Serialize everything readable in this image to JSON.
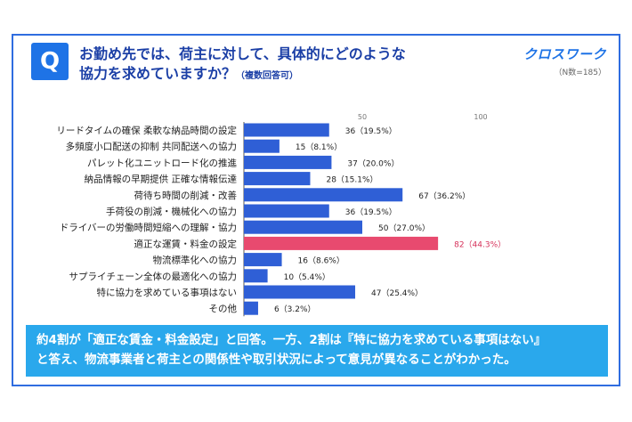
{
  "question": {
    "badge": "Q",
    "line1": "お勤め先では、荷主に対して、具体的にどのような",
    "line2": "協力を求めていますか？",
    "note": "（複数回答可）"
  },
  "brand": "クロスワーク",
  "sample_size": "（N数=185）",
  "colors": {
    "bar": "#2f5fd6",
    "highlight": "#e84a6f",
    "highlight_label": "#d6315a",
    "frame": "#2f6de0"
  },
  "chart_data": {
    "type": "bar",
    "orientation": "horizontal",
    "title": "",
    "xlabel": "",
    "ylabel": "",
    "xlim": [
      0,
      100
    ],
    "ticks": [
      "50",
      "100"
    ],
    "tick_values": [
      50,
      100
    ],
    "grid": false,
    "highlight_index": 7,
    "categories": [
      "リードタイムの確保 柔軟な納品時間の設定",
      "多頻度小口配送の抑制 共同配送への協力",
      "パレット化ユニットロード化の推進",
      "納品情報の早期提供 正確な情報伝達",
      "荷待ち時間の削減・改善",
      "手荷役の削減・機械化への協力",
      "ドライバーの労働時間短縮への理解・協力",
      "適正な運賃・料金の設定",
      "物流標準化への協力",
      "サプライチェーン全体の最適化への協力",
      "特に協力を求めている事項はない",
      "その他"
    ],
    "values": [
      36,
      15,
      37,
      28,
      67,
      36,
      50,
      82,
      16,
      10,
      47,
      6
    ],
    "labels": [
      "36（19.5%）",
      "15（8.1%）",
      "37（20.0%）",
      "28（15.1%）",
      "67（36.2%）",
      "36（19.5%）",
      "50（27.0%）",
      "82（44.3%）",
      "16（8.6%）",
      "10（5.4%）",
      "47（25.4%）",
      "6（3.2%）"
    ]
  },
  "summary": {
    "line1": "約4割が「適正な賃金・料金設定」と回答。一方、2割は『特に協力を求めている事項はない』",
    "line2": "と答え、物流事業者と荷主との関係性や取引状況によって意見が異なることがわかった。"
  }
}
